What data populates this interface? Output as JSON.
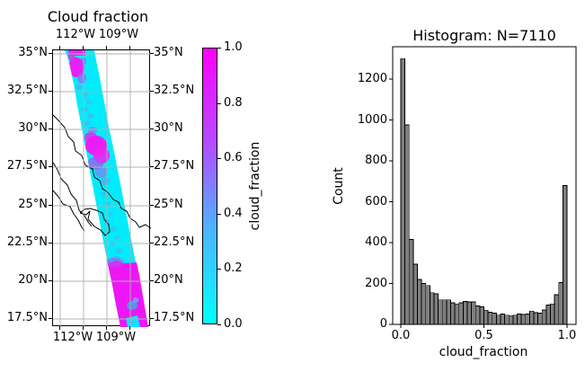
{
  "window": {
    "background": "#ffffff"
  },
  "map": {
    "title": "Cloud fraction",
    "top_lon_labels": [
      "112°W",
      "109°W"
    ],
    "bottom_lon_labels": [
      "112°W",
      "109°W"
    ],
    "lat_labels": [
      "35°N",
      "32.5°N",
      "30°N",
      "27.5°N",
      "25°N",
      "22.5°N",
      "20°N",
      "17.5°N"
    ],
    "gridline_color": "#b0b0b0",
    "coastline_color": "#000000",
    "swath_low_color": "#00eefc",
    "swath_high_color": "#f711f7"
  },
  "colorbar": {
    "label": "cloud_fraction",
    "tick_labels": [
      "1.0",
      "0.8",
      "0.6",
      "0.4",
      "0.2",
      "0.0"
    ],
    "min_color": "#00ffff",
    "max_color": "#ff00ff"
  },
  "histogram": {
    "title": "Histogram: N=7110",
    "xlabel": "cloud_fraction",
    "ylabel": "Count",
    "xtick_labels": [
      "0.0",
      "0.5",
      "1.0"
    ],
    "ytick_labels": [
      "0",
      "200",
      "400",
      "600",
      "800",
      "1000",
      "1200"
    ],
    "bar_fill": "#7f7f7f",
    "bar_edge": "#000000"
  },
  "chart_data": [
    {
      "type": "heatmap",
      "title": "Cloud fraction",
      "description": "Satellite swath map of cloud_fraction over the Gulf of California / Baja California region, diagonal swath from NW to SE, cool colormap (cyan=0 to magenta=1); mostly clear (cyan) with cloudy (magenta) patches near 34N, 29N and south of 21N",
      "colorbar_label": "cloud_fraction",
      "vmin": 0.0,
      "vmax": 1.0,
      "colorbar_ticks": [
        0.0,
        0.2,
        0.4,
        0.6,
        0.8,
        1.0
      ],
      "lon_gridline_labels_deg_w": [
        112,
        109
      ],
      "lat_gridline_labels_deg_n": [
        35,
        32.5,
        30,
        27.5,
        25,
        22.5,
        20,
        17.5
      ],
      "grid": true
    },
    {
      "type": "bar",
      "title": "Histogram: N=7110",
      "xlabel": "cloud_fraction",
      "ylabel": "Count",
      "n_total": 7110,
      "bin_start": 0.0,
      "bin_width": 0.025,
      "values": [
        1300,
        975,
        415,
        295,
        220,
        200,
        190,
        155,
        150,
        120,
        120,
        120,
        105,
        100,
        105,
        112,
        110,
        110,
        90,
        85,
        69,
        60,
        55,
        45,
        50,
        45,
        43,
        45,
        50,
        48,
        50,
        65,
        58,
        55,
        70,
        95,
        100,
        145,
        205,
        680
      ],
      "xticks": [
        0.0,
        0.5,
        1.0
      ],
      "yticks": [
        0,
        200,
        400,
        600,
        800,
        1000,
        1200
      ],
      "xlim": [
        -0.05,
        1.05
      ],
      "ylim": [
        0,
        1360
      ],
      "grid": false,
      "legend": null
    }
  ]
}
